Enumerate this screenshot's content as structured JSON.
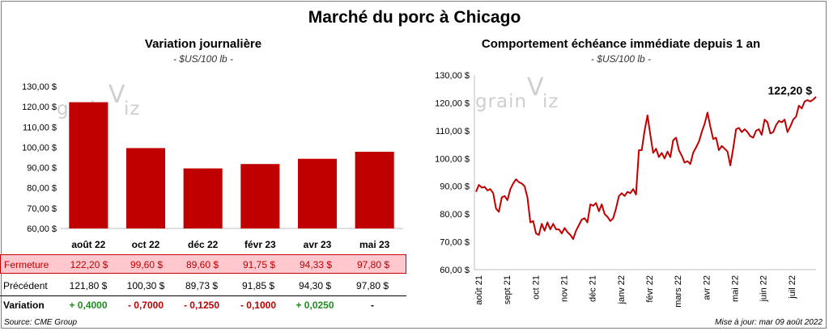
{
  "title": "Marché du porc à Chicago",
  "watermark": "grain",
  "watermark_v": "V",
  "watermark_iz": "iz",
  "chart_data": [
    {
      "type": "bar",
      "title": "Variation journalière",
      "subtitle": "- $US/100 lb -",
      "categories": [
        "août 22",
        "oct 22",
        "déc 22",
        "févr 23",
        "avr 23",
        "mai 23"
      ],
      "values": [
        122.2,
        99.6,
        89.6,
        91.75,
        94.33,
        97.8
      ],
      "ylim": [
        60,
        130
      ],
      "yticks": [
        "60,00 $",
        "70,00 $",
        "80,00 $",
        "90,00 $",
        "100,00 $",
        "110,00 $",
        "120,00 $",
        "130,00 $"
      ],
      "color": "#c00000",
      "table": {
        "rows": [
          {
            "label": "Fermeture",
            "values": [
              "122,20  $",
              "99,60  $",
              "89,60  $",
              "91,75  $",
              "94,33  $",
              "97,80  $"
            ]
          },
          {
            "label": "Précédent",
            "values": [
              "121,80  $",
              "100,30  $",
              "89,73  $",
              "91,85  $",
              "94,30  $",
              "97,80  $"
            ]
          },
          {
            "label": "Variation",
            "values": [
              "+ 0,4000",
              "- 0,7000",
              "- 0,1250",
              "- 0,1000",
              "+ 0,0250",
              "-"
            ]
          }
        ]
      }
    },
    {
      "type": "line",
      "title": "Comportement  échéance immédiate depuis 1 an",
      "subtitle": "- $US/100 lb -",
      "ylim": [
        60,
        130
      ],
      "yticks": [
        "60,00 $",
        "70,00 $",
        "80,00 $",
        "90,00 $",
        "100,00 $",
        "110,00 $",
        "120,00 $",
        "130,00 $"
      ],
      "xticks": [
        "août 21",
        "sept 21",
        "oct 21",
        "nov 21",
        "déc 21",
        "janv 22",
        "févr 22",
        "mars 22",
        "avr 22",
        "mai 22",
        "juin 22",
        "juil 22"
      ],
      "annotation": "122,20 $",
      "color": "#c00000",
      "values": [
        88,
        90.5,
        89.5,
        89.8,
        88.5,
        89,
        87.5,
        82,
        80.8,
        86,
        86.5,
        85,
        89,
        91,
        92.5,
        91.5,
        91,
        90,
        86,
        77,
        77.5,
        73,
        72.5,
        76.5,
        74,
        77,
        74.5,
        76.5,
        74.5,
        74.5,
        73,
        75,
        73.5,
        72.5,
        71,
        74,
        76,
        78,
        78.5,
        77,
        83.5,
        83,
        84,
        81,
        83.5,
        80,
        79,
        77.5,
        78.5,
        82,
        86.5,
        87.5,
        86.5,
        88,
        87.5,
        89,
        87,
        103,
        103,
        110,
        115.5,
        108.5,
        102,
        103.5,
        100.5,
        102,
        100,
        102.5,
        100.5,
        106.5,
        107.5,
        103,
        101,
        98.5,
        99,
        98,
        102,
        104,
        106,
        109.5,
        112.5,
        116.5,
        111.5,
        107,
        107.5,
        103,
        104.5,
        103.5,
        102.5,
        97.5,
        103.5,
        110.5,
        111,
        109.5,
        110.5,
        109.5,
        108,
        107.5,
        110,
        110.5,
        108.5,
        114,
        113,
        109,
        109.5,
        112,
        113.5,
        113,
        114,
        109.5,
        111.5,
        114,
        115,
        119,
        118,
        120.5,
        121,
        120.5,
        121.2,
        122.2
      ]
    }
  ],
  "source": "Source: CME Group",
  "updated": "Mise à jour: mar 09 août 2022"
}
